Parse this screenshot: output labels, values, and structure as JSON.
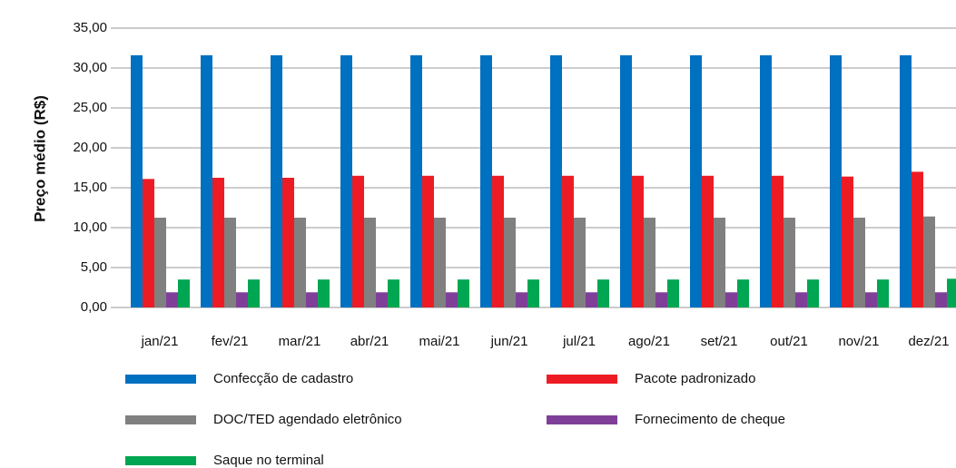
{
  "chart_data": {
    "type": "bar",
    "y_label": "Preço médio (R$)",
    "categories": [
      "jan/21",
      "fev/21",
      "mar/21",
      "abr/21",
      "mai/21",
      "jun/21",
      "jul/21",
      "ago/21",
      "set/21",
      "out/21",
      "nov/21",
      "dez/21"
    ],
    "series": [
      {
        "name": "Confecção de cadastro",
        "color": "#0070c0",
        "values": [
          31.6,
          31.6,
          31.6,
          31.6,
          31.6,
          31.6,
          31.6,
          31.6,
          31.6,
          31.6,
          31.6,
          31.6
        ]
      },
      {
        "name": "Pacote padronizado",
        "color": "#ed1c24",
        "values": [
          16.1,
          16.25,
          16.25,
          16.5,
          16.5,
          16.5,
          16.5,
          16.5,
          16.5,
          16.5,
          16.4,
          17.0
        ]
      },
      {
        "name": "DOC/TED agendado eletrônico",
        "color": "#808080",
        "values": [
          11.25,
          11.25,
          11.25,
          11.25,
          11.25,
          11.25,
          11.25,
          11.25,
          11.25,
          11.25,
          11.25,
          11.4
        ]
      },
      {
        "name": "Fornecimento de cheque",
        "color": "#7f3f98",
        "values": [
          1.9,
          1.9,
          1.9,
          1.9,
          1.9,
          1.9,
          1.9,
          1.9,
          1.9,
          1.9,
          1.9,
          1.9
        ]
      },
      {
        "name": "Saque no terminal",
        "color": "#00a651",
        "values": [
          3.5,
          3.5,
          3.5,
          3.5,
          3.5,
          3.5,
          3.5,
          3.5,
          3.5,
          3.5,
          3.5,
          3.6
        ]
      }
    ],
    "ylim": [
      0,
      35
    ],
    "yticks": [
      {
        "value": 0,
        "label": "0,00"
      },
      {
        "value": 5,
        "label": "5,00"
      },
      {
        "value": 10,
        "label": "10,00"
      },
      {
        "value": 15,
        "label": "15,00"
      },
      {
        "value": 20,
        "label": "20,00"
      },
      {
        "value": 25,
        "label": "25,00"
      },
      {
        "value": 30,
        "label": "30,00"
      },
      {
        "value": 35,
        "label": "35,00"
      }
    ],
    "grid": true
  }
}
